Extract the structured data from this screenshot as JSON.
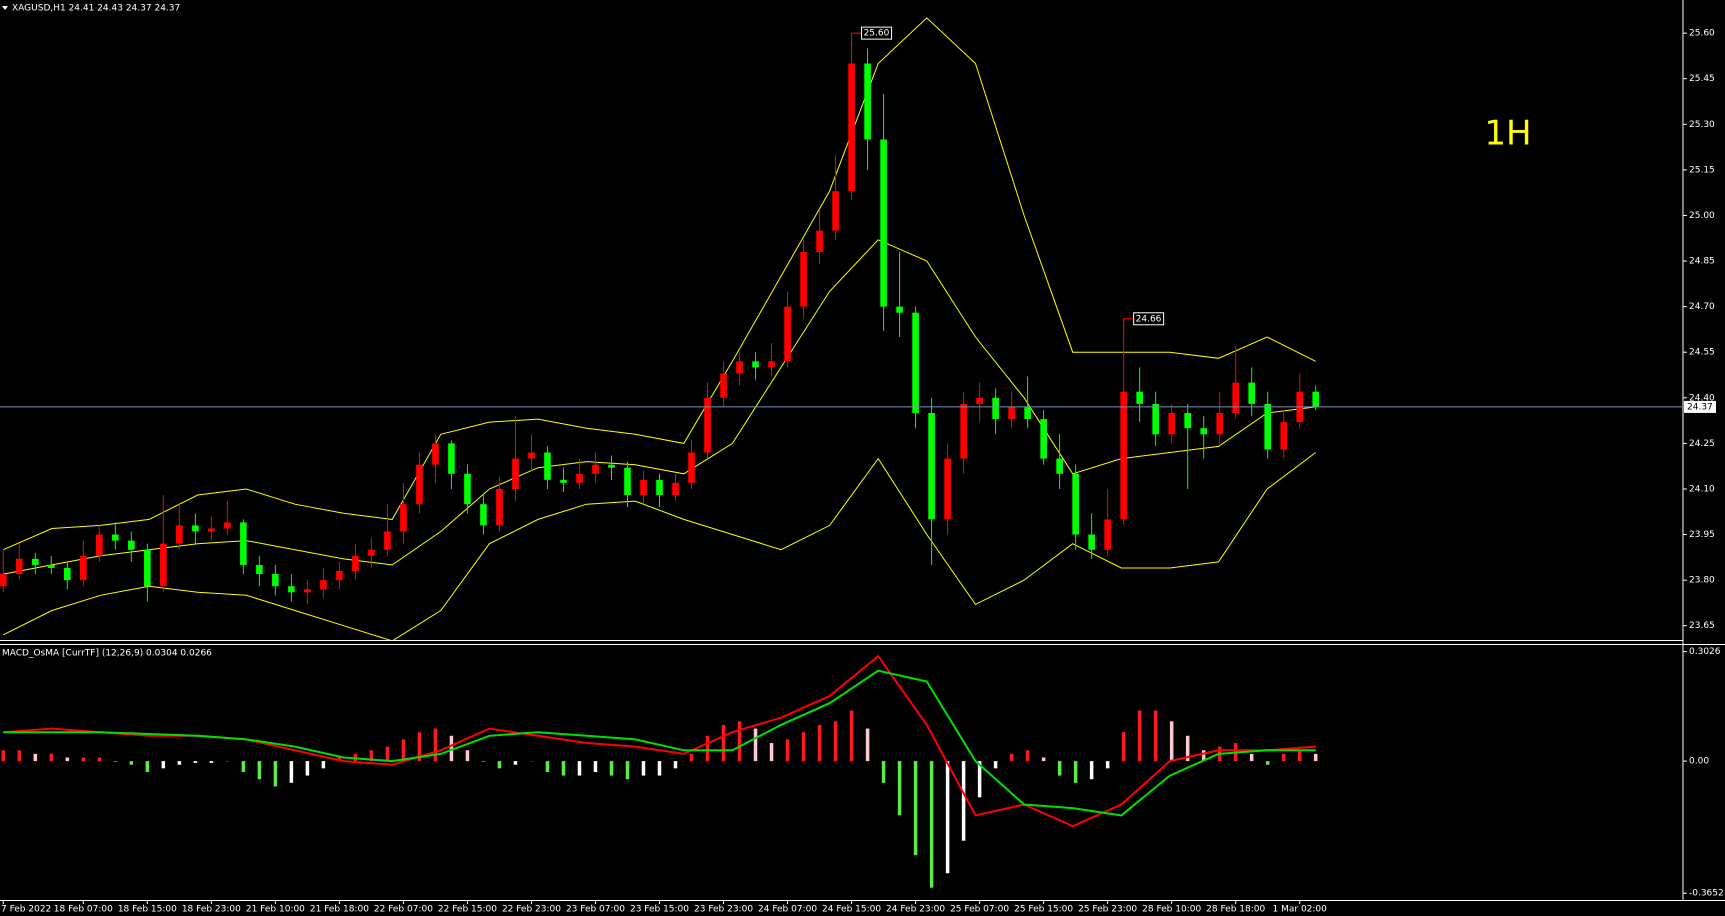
{
  "chart_data": [
    {
      "type": "candlestick",
      "title": "XAGUSD,H1  24.41 24.43 24.37 24.37",
      "annotation": "1H",
      "up_color": "#ff0000",
      "down_color": "#00ff00",
      "ohlc": [
        [
          23.78,
          23.9,
          23.76,
          23.82
        ],
        [
          23.82,
          23.92,
          23.8,
          23.87
        ],
        [
          23.87,
          23.89,
          23.82,
          23.85
        ],
        [
          23.85,
          23.88,
          23.82,
          23.84
        ],
        [
          23.84,
          23.86,
          23.77,
          23.8
        ],
        [
          23.8,
          23.93,
          23.78,
          23.88
        ],
        [
          23.88,
          23.98,
          23.86,
          23.95
        ],
        [
          23.95,
          23.99,
          23.9,
          23.93
        ],
        [
          23.93,
          23.96,
          23.86,
          23.9
        ],
        [
          23.9,
          23.92,
          23.73,
          23.78
        ],
        [
          23.78,
          24.08,
          23.76,
          23.92
        ],
        [
          23.92,
          24.05,
          23.9,
          23.98
        ],
        [
          23.98,
          24.02,
          23.92,
          23.96
        ],
        [
          23.96,
          24.01,
          23.93,
          23.97
        ],
        [
          23.97,
          24.06,
          23.95,
          23.99
        ],
        [
          23.99,
          24.0,
          23.82,
          23.85
        ],
        [
          23.85,
          23.88,
          23.78,
          23.82
        ],
        [
          23.82,
          23.85,
          23.75,
          23.78
        ],
        [
          23.78,
          23.82,
          23.73,
          23.76
        ],
        [
          23.76,
          23.8,
          23.72,
          23.77
        ],
        [
          23.77,
          23.84,
          23.74,
          23.8
        ],
        [
          23.8,
          23.86,
          23.77,
          23.83
        ],
        [
          23.83,
          23.92,
          23.8,
          23.88
        ],
        [
          23.88,
          23.94,
          23.84,
          23.9
        ],
        [
          23.9,
          24.05,
          23.88,
          23.96
        ],
        [
          23.96,
          24.12,
          23.92,
          24.05
        ],
        [
          24.05,
          24.22,
          24.02,
          24.18
        ],
        [
          24.18,
          24.28,
          24.12,
          24.25
        ],
        [
          24.25,
          24.26,
          24.1,
          24.15
        ],
        [
          24.15,
          24.18,
          24.02,
          24.05
        ],
        [
          24.05,
          24.08,
          23.95,
          23.98
        ],
        [
          23.98,
          24.14,
          23.96,
          24.1
        ],
        [
          24.1,
          24.34,
          24.06,
          24.2
        ],
        [
          24.2,
          24.28,
          24.16,
          24.22
        ],
        [
          24.22,
          24.24,
          24.1,
          24.13
        ],
        [
          24.13,
          24.17,
          24.09,
          24.12
        ],
        [
          24.12,
          24.2,
          24.1,
          24.15
        ],
        [
          24.15,
          24.22,
          24.12,
          24.18
        ],
        [
          24.18,
          24.21,
          24.13,
          24.17
        ],
        [
          24.17,
          24.19,
          24.04,
          24.08
        ],
        [
          24.08,
          24.16,
          24.05,
          24.13
        ],
        [
          24.13,
          24.15,
          24.04,
          24.08
        ],
        [
          24.08,
          24.15,
          24.06,
          24.12
        ],
        [
          24.12,
          24.26,
          24.1,
          24.22
        ],
        [
          24.22,
          24.45,
          24.2,
          24.4
        ],
        [
          24.4,
          24.52,
          24.37,
          24.48
        ],
        [
          24.48,
          24.55,
          24.44,
          24.52
        ],
        [
          24.52,
          24.55,
          24.46,
          24.5
        ],
        [
          24.5,
          24.58,
          24.47,
          24.52
        ],
        [
          24.52,
          24.75,
          24.5,
          24.7
        ],
        [
          24.7,
          24.92,
          24.66,
          24.88
        ],
        [
          24.88,
          25.02,
          24.84,
          24.95
        ],
        [
          24.95,
          25.2,
          24.92,
          25.08
        ],
        [
          25.08,
          25.6,
          25.05,
          25.5
        ],
        [
          25.5,
          25.55,
          25.15,
          25.25
        ],
        [
          25.25,
          25.4,
          24.62,
          24.7
        ],
        [
          24.7,
          24.88,
          24.6,
          24.68
        ],
        [
          24.68,
          24.7,
          24.3,
          24.35
        ],
        [
          24.35,
          24.4,
          23.85,
          24.0
        ],
        [
          24.0,
          24.25,
          23.95,
          24.2
        ],
        [
          24.2,
          24.42,
          24.15,
          24.38
        ],
        [
          24.38,
          24.45,
          24.32,
          24.4
        ],
        [
          24.4,
          24.43,
          24.28,
          24.33
        ],
        [
          24.33,
          24.42,
          24.3,
          24.37
        ],
        [
          24.37,
          24.47,
          24.3,
          24.33
        ],
        [
          24.33,
          24.36,
          24.18,
          24.2
        ],
        [
          24.2,
          24.28,
          24.1,
          24.15
        ],
        [
          24.15,
          24.18,
          23.9,
          23.95
        ],
        [
          23.95,
          24.02,
          23.87,
          23.9
        ],
        [
          23.9,
          24.1,
          23.88,
          24.0
        ],
        [
          24.0,
          24.66,
          23.98,
          24.42
        ],
        [
          24.42,
          24.5,
          24.32,
          24.38
        ],
        [
          24.38,
          24.42,
          24.24,
          24.28
        ],
        [
          24.28,
          24.38,
          24.25,
          24.35
        ],
        [
          24.35,
          24.38,
          24.1,
          24.3
        ],
        [
          24.3,
          24.34,
          24.2,
          24.28
        ],
        [
          24.28,
          24.42,
          24.25,
          24.35
        ],
        [
          24.35,
          24.57,
          24.33,
          24.45
        ],
        [
          24.45,
          24.5,
          24.34,
          24.38
        ],
        [
          24.38,
          24.42,
          24.2,
          24.23
        ],
        [
          24.23,
          24.36,
          24.2,
          24.32
        ],
        [
          24.32,
          24.48,
          24.3,
          24.42
        ],
        [
          24.42,
          24.44,
          24.36,
          24.37
        ]
      ],
      "bands": {
        "color": "#ffff00",
        "upper": [
          23.9,
          23.97,
          23.98,
          24.0,
          24.08,
          24.1,
          24.05,
          24.02,
          24.0,
          24.28,
          24.32,
          24.33,
          24.3,
          24.28,
          24.25,
          24.52,
          24.8,
          25.08,
          25.5,
          25.65,
          25.5,
          25.0,
          24.55,
          24.55,
          24.55,
          24.53,
          24.6,
          24.52
        ],
        "middle": [
          23.82,
          23.85,
          23.88,
          23.9,
          23.92,
          23.93,
          23.9,
          23.87,
          23.85,
          23.96,
          24.1,
          24.17,
          24.19,
          24.18,
          24.15,
          24.25,
          24.5,
          24.75,
          24.92,
          24.85,
          24.6,
          24.4,
          24.15,
          24.2,
          24.22,
          24.24,
          24.35,
          24.37
        ],
        "lower": [
          23.62,
          23.7,
          23.75,
          23.78,
          23.76,
          23.75,
          23.7,
          23.65,
          23.6,
          23.7,
          23.92,
          24.0,
          24.05,
          24.06,
          24.0,
          23.95,
          23.9,
          23.98,
          24.2,
          23.95,
          23.72,
          23.8,
          23.92,
          23.84,
          23.84,
          23.86,
          24.1,
          24.22
        ]
      },
      "current_price": 24.37,
      "high_labels": [
        {
          "value": 25.6,
          "label": "25.60"
        },
        {
          "value": 24.66,
          "label": "24.66"
        }
      ],
      "ylim": [
        23.603,
        25.709
      ],
      "yticks": [
        {
          "value": 25.6,
          "label": "25.60"
        },
        25.45,
        {
          "value": 25.3,
          "label": "25.30"
        },
        25.15,
        {
          "value": 25,
          "label": "25.00"
        },
        24.85,
        {
          "value": 24.7,
          "label": "24.70"
        },
        24.55,
        {
          "value": 24.4,
          "label": "24.40"
        },
        24.25,
        {
          "value": 24.1,
          "label": "24.10"
        },
        23.95,
        {
          "value": 23.8,
          "label": "23.80"
        },
        23.65
      ]
    },
    {
      "type": "macd",
      "title": "MACD_OsMA [CurrTF] (12,26,9) 0.0304 0.0266",
      "histogram": [
        0.03,
        0.03,
        0.02,
        0.02,
        0.01,
        0.01,
        0.01,
        0.0,
        -0.01,
        -0.03,
        -0.02,
        -0.01,
        -0.005,
        -0.005,
        0.0,
        -0.03,
        -0.05,
        -0.07,
        -0.06,
        -0.04,
        -0.02,
        0.01,
        0.02,
        0.03,
        0.04,
        0.06,
        0.08,
        0.09,
        0.07,
        0.03,
        0.0,
        -0.02,
        -0.01,
        0.0,
        -0.03,
        -0.04,
        -0.04,
        -0.03,
        -0.04,
        -0.05,
        -0.04,
        -0.04,
        -0.02,
        0.02,
        0.07,
        0.1,
        0.11,
        0.09,
        0.05,
        0.06,
        0.08,
        0.1,
        0.11,
        0.14,
        0.09,
        -0.06,
        -0.15,
        -0.26,
        -0.35,
        -0.31,
        -0.22,
        -0.1,
        -0.02,
        0.02,
        0.03,
        0.01,
        -0.04,
        -0.06,
        -0.05,
        -0.02,
        0.08,
        0.14,
        0.14,
        0.11,
        0.07,
        0.03,
        0.04,
        0.05,
        0.02,
        -0.01,
        0.02,
        0.03,
        0.02
      ],
      "histogram_colors": {
        "rising_positive": "#ff1a1a",
        "falling_positive": "#ffc8d2",
        "falling_negative": "#5ee84a",
        "rising_negative": "#ffffff"
      },
      "macd": {
        "color": "#ff0000",
        "values": [
          0.08,
          0.09,
          0.08,
          0.07,
          0.07,
          0.06,
          0.03,
          0.0,
          -0.01,
          0.03,
          0.09,
          0.07,
          0.05,
          0.04,
          0.02,
          0.08,
          0.12,
          0.18,
          0.29,
          0.1,
          -0.15,
          -0.12,
          -0.18,
          -0.12,
          0.0,
          0.03,
          0.03,
          0.04
        ]
      },
      "signal": {
        "color": "#00e000",
        "values": [
          0.08,
          0.08,
          0.08,
          0.075,
          0.07,
          0.06,
          0.04,
          0.01,
          0.0,
          0.02,
          0.07,
          0.08,
          0.07,
          0.06,
          0.03,
          0.03,
          0.1,
          0.16,
          0.25,
          0.22,
          0.0,
          -0.12,
          -0.13,
          -0.15,
          -0.04,
          0.02,
          0.03,
          0.03
        ]
      },
      "ylim": [
        -0.384,
        0.321
      ],
      "yticks": [
        0.3026,
        {
          "value": 0,
          "label": "0.00"
        },
        -0.3652
      ],
      "categories": [
        "7 Feb 2022",
        null,
        null,
        null,
        null,
        "18 Feb 07:00",
        null,
        null,
        null,
        "18 Feb 15:00",
        null,
        null,
        null,
        "18 Feb 23:00",
        null,
        null,
        null,
        "21 Feb 10:00",
        null,
        null,
        null,
        "21 Feb 18:00",
        null,
        null,
        null,
        "22 Feb 07:00",
        null,
        null,
        null,
        "22 Feb 15:00",
        null,
        null,
        null,
        "22 Feb 23:00",
        null,
        null,
        null,
        "23 Feb 07:00",
        null,
        null,
        null,
        "23 Feb 15:00",
        null,
        null,
        null,
        "23 Feb 23:00",
        null,
        null,
        null,
        "24 Feb 07:00",
        null,
        null,
        null,
        "24 Feb 15:00",
        null,
        null,
        null,
        "24 Feb 23:00",
        null,
        null,
        null,
        "25 Feb 07:00",
        null,
        null,
        null,
        "25 Feb 15:00",
        null,
        null,
        null,
        "25 Feb 23:00",
        null,
        null,
        null,
        "28 Feb 10:00",
        null,
        null,
        null,
        "28 Feb 18:00",
        null,
        null,
        null,
        "1 Mar 02:00",
        null
      ]
    }
  ]
}
